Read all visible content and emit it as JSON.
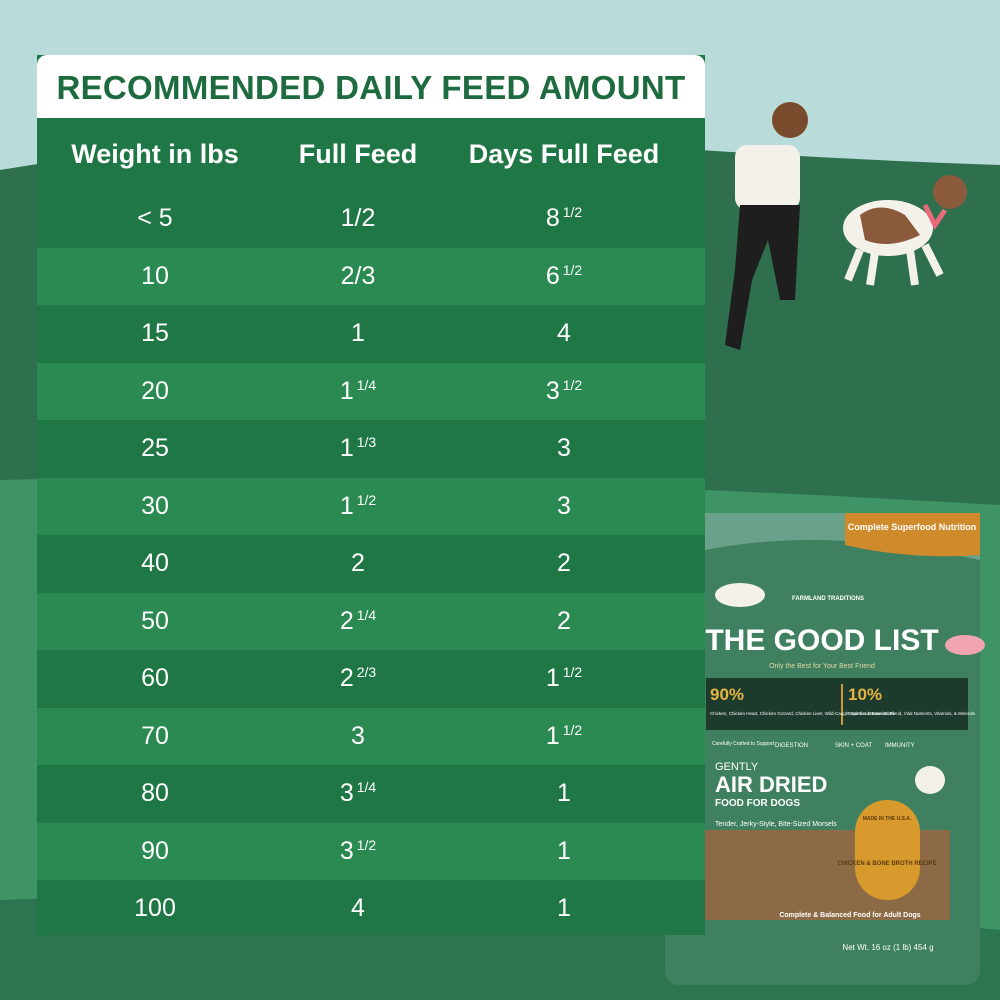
{
  "table": {
    "title": "RECOMMENDED DAILY FEED AMOUNT",
    "headers": [
      "Weight in lbs",
      "Full Feed",
      "Days Full Feed"
    ],
    "rows": [
      [
        "< 5",
        "1/2",
        {
          "whole": "8",
          "fraction": "1/2"
        }
      ],
      [
        "10",
        "2/3",
        {
          "whole": "6",
          "fraction": "1/2"
        }
      ],
      [
        "15",
        "1",
        "4"
      ],
      [
        "20",
        {
          "whole": "1",
          "fraction": "1/4"
        },
        {
          "whole": "3",
          "fraction": "1/2"
        }
      ],
      [
        "25",
        {
          "whole": "1",
          "fraction": "1/3"
        },
        "3"
      ],
      [
        "30",
        {
          "whole": "1",
          "fraction": "1/2"
        },
        "3"
      ],
      [
        "40",
        "2",
        "2"
      ],
      [
        "50",
        {
          "whole": "2",
          "fraction": "1/4"
        },
        "2"
      ],
      [
        "60",
        {
          "whole": "2",
          "fraction": "2/3"
        },
        {
          "whole": "1",
          "fraction": "1/2"
        }
      ],
      [
        "70",
        "3",
        {
          "whole": "1",
          "fraction": "1/2"
        }
      ],
      [
        "80",
        {
          "whole": "3",
          "fraction": "1/4"
        },
        "1"
      ],
      [
        "90",
        {
          "whole": "3",
          "fraction": "1/2"
        },
        "1"
      ],
      [
        "100",
        "4",
        "1"
      ]
    ]
  },
  "package": {
    "badge": "Complete Superfood Nutrition",
    "brand": "FARMLAND TRADITIONS",
    "name": "THE GOOD LIST",
    "tagline": "Only the Best for Your Best Friend",
    "left_pct": "90%",
    "left_desc": "Chicken, Chicken Heart, Chicken Gizzard, Chicken Liver, Wild-Caught Salmon & Bone Broth",
    "right_pct": "10%",
    "right_desc": "Superfood Botanical Blend, Vital Nutrients, Vitamins, & Minerals",
    "support": "Carefully Crafted to Support:",
    "benefits": [
      "DIGESTION",
      "SKIN + COAT",
      "IMMUNITY"
    ],
    "gently": "GENTLY",
    "air_dried": "AIR DRIED",
    "food": "FOOD FOR DOGS",
    "texture": "Tender, Jerky-Style, Bite-Sized Morsels",
    "recipe": "CHICKEN & BONE BROTH RECIPE",
    "seal": "MADE IN THE U.S.A.",
    "complete": "Complete & Balanced Food for Adult Dogs",
    "weight": "Net Wt. 16 oz (1 lb) 454 g"
  }
}
